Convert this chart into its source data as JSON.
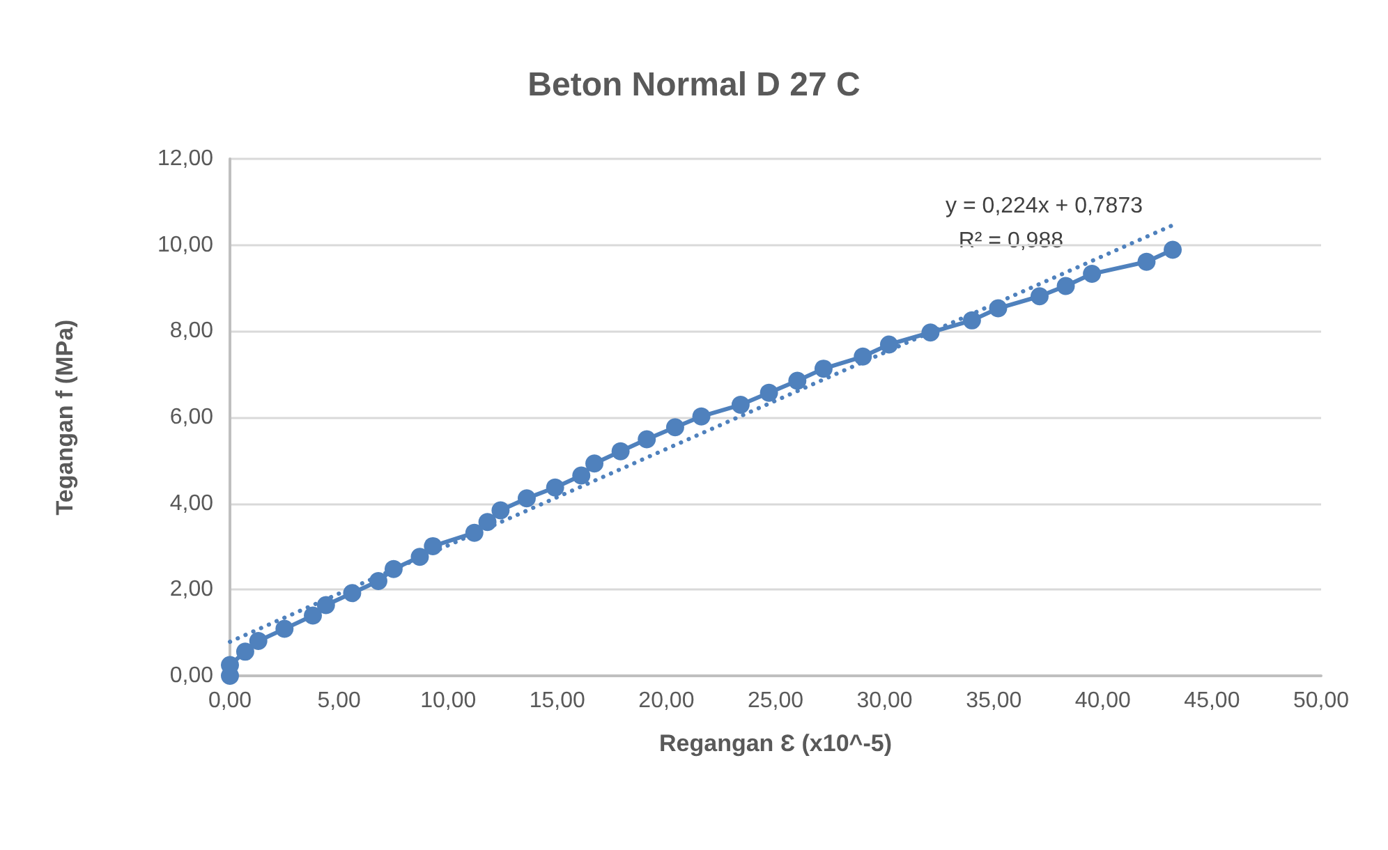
{
  "chart_data": {
    "type": "line",
    "title": "Beton Normal D 27 C",
    "xlabel": "Regangan Ɛ (x10^-5)",
    "ylabel": "Tegangan f (MPa)",
    "x": [
      0,
      0,
      0.7,
      1.3,
      2.5,
      3.8,
      4.4,
      5.6,
      6.8,
      7.5,
      8.7,
      9.3,
      11.2,
      11.8,
      12.4,
      13.6,
      14.9,
      16.1,
      16.7,
      17.9,
      19.1,
      20.4,
      21.6,
      23.4,
      24.7,
      26.0,
      27.2,
      29.0,
      30.2,
      32.1,
      34.0,
      35.2,
      37.1,
      38.3,
      39.5,
      42.0,
      43.2
    ],
    "series": [
      {
        "color": "#4f81bd",
        "marker": "circle",
        "line_style": "solid",
        "values": [
          0,
          0.25,
          0.56,
          0.81,
          1.09,
          1.4,
          1.64,
          1.92,
          2.2,
          2.48,
          2.76,
          3.01,
          3.32,
          3.57,
          3.84,
          4.12,
          4.37,
          4.65,
          4.93,
          5.21,
          5.49,
          5.77,
          6.02,
          6.29,
          6.57,
          6.85,
          7.13,
          7.41,
          7.69,
          7.97,
          8.25,
          8.53,
          8.81,
          9.05,
          9.33,
          9.61,
          9.89
        ]
      },
      {
        "color": "#4f81bd",
        "marker": "none",
        "line_style": "dotted",
        "x": [
          0,
          43.2
        ],
        "values": [
          0.79,
          10.46
        ]
      }
    ],
    "annotations": [
      "y = 0,224x + 0,7873",
      "R² = 0,988"
    ],
    "xlim": [
      0,
      50
    ],
    "xticks": [
      {
        "value": 0,
        "label": "0,00"
      },
      {
        "value": 5,
        "label": "5,00"
      },
      {
        "value": 10,
        "label": "10,00"
      },
      {
        "value": 15,
        "label": "15,00"
      },
      {
        "value": 20,
        "label": "20,00"
      },
      {
        "value": 25,
        "label": "25,00"
      },
      {
        "value": 30,
        "label": "30,00"
      },
      {
        "value": 35,
        "label": "35,00"
      },
      {
        "value": 40,
        "label": "40,00"
      },
      {
        "value": 45,
        "label": "45,00"
      },
      {
        "value": 50,
        "label": "50,00"
      }
    ],
    "ylim": [
      0,
      12
    ],
    "yticks": [
      {
        "value": 0,
        "label": "0,00"
      },
      {
        "value": 2,
        "label": "2,00"
      },
      {
        "value": 4,
        "label": "4,00"
      },
      {
        "value": 6,
        "label": "6,00"
      },
      {
        "value": 8,
        "label": "8,00"
      },
      {
        "value": 10,
        "label": "10,00"
      },
      {
        "value": 12,
        "label": "12,00"
      }
    ],
    "grid": "y"
  }
}
